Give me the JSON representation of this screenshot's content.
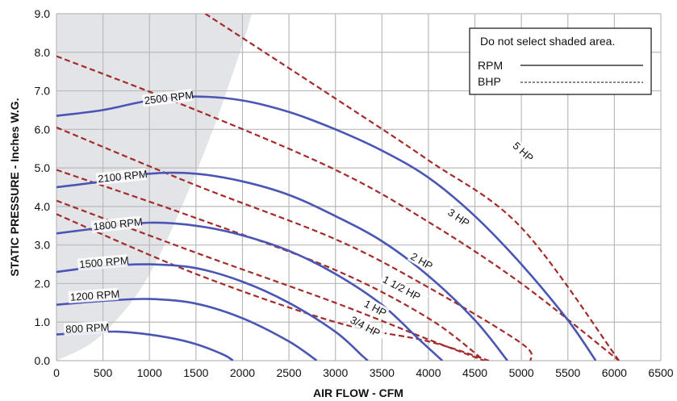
{
  "chart_data": {
    "type": "line",
    "xlabel": "AIR FLOW - CFM",
    "ylabel": "STATIC PRESSURE - Inches W.G.",
    "xlim": [
      0,
      6500
    ],
    "ylim": [
      0,
      9
    ],
    "x_ticks": [
      "0",
      "500",
      "1000",
      "1500",
      "2000",
      "2500",
      "3000",
      "3500",
      "4000",
      "4500",
      "5000",
      "5500",
      "6000",
      "6500"
    ],
    "y_ticks": [
      "0.0",
      "1.0",
      "2.0",
      "3.0",
      "4.0",
      "5.0",
      "6.0",
      "7.0",
      "8.0",
      "9.0"
    ],
    "grid": true,
    "shaded_region": {
      "color": "#e3e4e8",
      "boundary": [
        [
          0,
          0
        ],
        [
          400,
          0.5
        ],
        [
          800,
          1.5
        ],
        [
          1100,
          2.7
        ],
        [
          1400,
          4.3
        ],
        [
          1700,
          6.1
        ],
        [
          2000,
          8.2
        ],
        [
          2100,
          9.0
        ]
      ]
    },
    "legend": {
      "position": "top-right",
      "note": "Do not select shaded area.",
      "rpm_label": "RPM",
      "bhp_label": "BHP"
    },
    "colors": {
      "rpm": "#4a56b4",
      "bhp": "#a52a2a",
      "grid": "#b9b9b9"
    },
    "rpm_series": [
      {
        "name": "800 RPM",
        "label_at": [
          100,
          0.72
        ],
        "label_angle": -3,
        "points": [
          [
            0,
            0.68
          ],
          [
            500,
            0.75
          ],
          [
            800,
            0.73
          ],
          [
            1200,
            0.6
          ],
          [
            1500,
            0.43
          ],
          [
            1800,
            0.15
          ],
          [
            1900,
            0.0
          ]
        ]
      },
      {
        "name": "1200 RPM",
        "label_at": [
          150,
          1.55
        ],
        "label_angle": -4,
        "points": [
          [
            0,
            1.45
          ],
          [
            500,
            1.55
          ],
          [
            1000,
            1.6
          ],
          [
            1500,
            1.48
          ],
          [
            2000,
            1.1
          ],
          [
            2500,
            0.5
          ],
          [
            2800,
            0.0
          ]
        ]
      },
      {
        "name": "1500 RPM",
        "label_at": [
          250,
          2.4
        ],
        "label_angle": -5,
        "points": [
          [
            0,
            2.3
          ],
          [
            500,
            2.45
          ],
          [
            1000,
            2.5
          ],
          [
            1500,
            2.4
          ],
          [
            2000,
            2.05
          ],
          [
            2500,
            1.5
          ],
          [
            3000,
            0.75
          ],
          [
            3300,
            0.1
          ],
          [
            3350,
            0.0
          ]
        ]
      },
      {
        "name": "1800 RPM",
        "label_at": [
          400,
          3.38
        ],
        "label_angle": -6,
        "points": [
          [
            0,
            3.3
          ],
          [
            500,
            3.45
          ],
          [
            1000,
            3.58
          ],
          [
            1500,
            3.5
          ],
          [
            2000,
            3.25
          ],
          [
            2500,
            2.85
          ],
          [
            3000,
            2.25
          ],
          [
            3500,
            1.45
          ],
          [
            3900,
            0.55
          ],
          [
            4150,
            0.0
          ]
        ]
      },
      {
        "name": "2100 RPM",
        "label_at": [
          450,
          4.62
        ],
        "label_angle": -6,
        "points": [
          [
            0,
            4.5
          ],
          [
            500,
            4.65
          ],
          [
            1000,
            4.85
          ],
          [
            1500,
            4.85
          ],
          [
            2000,
            4.65
          ],
          [
            2500,
            4.3
          ],
          [
            3000,
            3.75
          ],
          [
            3500,
            3.1
          ],
          [
            4000,
            2.2
          ],
          [
            4500,
            1.05
          ],
          [
            4850,
            0.0
          ]
        ]
      },
      {
        "name": "2500 RPM",
        "label_at": [
          950,
          6.65
        ],
        "label_angle": -7,
        "points": [
          [
            0,
            6.35
          ],
          [
            500,
            6.5
          ],
          [
            1000,
            6.75
          ],
          [
            1500,
            6.85
          ],
          [
            2000,
            6.75
          ],
          [
            2500,
            6.45
          ],
          [
            3000,
            6.0
          ],
          [
            3500,
            5.45
          ],
          [
            4000,
            4.75
          ],
          [
            4500,
            3.75
          ],
          [
            5000,
            2.5
          ],
          [
            5500,
            1.05
          ],
          [
            5800,
            0.0
          ]
        ]
      }
    ],
    "bhp_series": [
      {
        "name": "3/4 HP",
        "label_at": [
          3150,
          1.0
        ],
        "label_angle": 28,
        "points": [
          [
            0,
            3.8
          ],
          [
            1500,
            2.25
          ],
          [
            3000,
            1.0
          ],
          [
            4000,
            0.5
          ],
          [
            4650,
            0.0
          ]
        ]
      },
      {
        "name": "1 HP",
        "label_at": [
          3300,
          1.42
        ],
        "label_angle": 28,
        "points": [
          [
            0,
            4.15
          ],
          [
            1500,
            2.8
          ],
          [
            3000,
            1.5
          ],
          [
            4000,
            0.55
          ],
          [
            4600,
            0.0
          ]
        ]
      },
      {
        "name": "1 1/2 HP",
        "label_at": [
          3500,
          2.05
        ],
        "label_angle": 28,
        "points": [
          [
            0,
            4.95
          ],
          [
            1500,
            3.7
          ],
          [
            3000,
            2.35
          ],
          [
            4000,
            1.1
          ],
          [
            4600,
            0.0
          ]
        ]
      },
      {
        "name": "2 HP",
        "label_at": [
          3800,
          2.65
        ],
        "label_angle": 30,
        "points": [
          [
            0,
            6.05
          ],
          [
            1500,
            4.55
          ],
          [
            3000,
            3.15
          ],
          [
            4000,
            1.9
          ],
          [
            5000,
            0.45
          ],
          [
            5100,
            0.0
          ]
        ]
      },
      {
        "name": "3 HP",
        "label_at": [
          4200,
          3.8
        ],
        "label_angle": 34,
        "points": [
          [
            0,
            7.9
          ],
          [
            1500,
            6.5
          ],
          [
            3000,
            4.95
          ],
          [
            4000,
            3.6
          ],
          [
            5000,
            2.0
          ],
          [
            6050,
            0.0
          ]
        ]
      },
      {
        "name": "5 HP",
        "label_at": [
          4900,
          5.55
        ],
        "label_angle": 42,
        "points": [
          [
            1600,
            9.0
          ],
          [
            3000,
            6.8
          ],
          [
            4000,
            5.2
          ],
          [
            5000,
            3.45
          ],
          [
            6050,
            0.0
          ]
        ]
      }
    ]
  }
}
